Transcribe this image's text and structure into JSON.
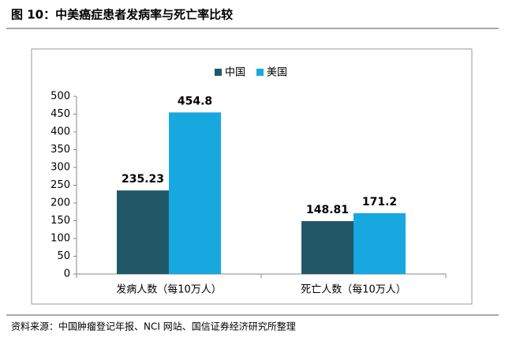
{
  "chart_data": {
    "type": "bar",
    "title": "图 10：中美癌症患者发病率与死亡率比较",
    "source": "资料来源：中国肿瘤登记年报、NCI 网站、国信证券经济研究所整理",
    "categories": [
      "发病人数（每10万人）",
      "死亡人数（每10万人）"
    ],
    "series": [
      {
        "name": "中国",
        "color": "#215868",
        "values": [
          235.23,
          148.81
        ]
      },
      {
        "name": "美国",
        "color": "#18a8e0",
        "values": [
          454.8,
          171.2
        ]
      }
    ],
    "ylim": [
      0,
      500
    ],
    "yticks": [
      0,
      50,
      100,
      150,
      200,
      250,
      300,
      350,
      400,
      450,
      500
    ],
    "grid": false,
    "legend": "top"
  }
}
